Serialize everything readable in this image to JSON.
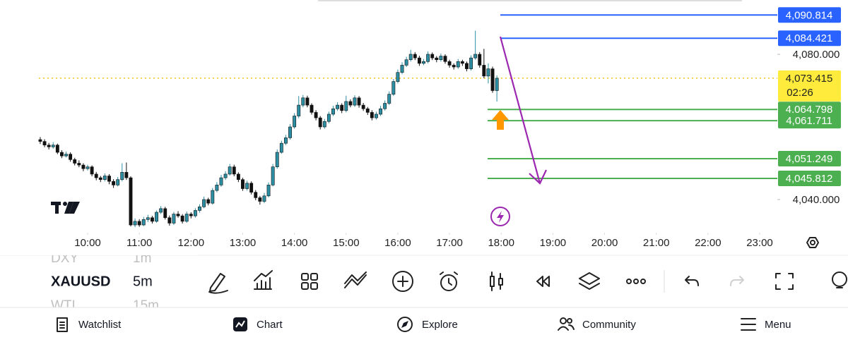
{
  "chart_data": {
    "type": "candlestick",
    "up_color": "#2b8ea3",
    "down_color": "#111111",
    "xlim": [
      543.4,
      1396.4
    ],
    "xticks": [
      {
        "value": 600,
        "label": "10:00"
      },
      {
        "value": 660,
        "label": "11:00"
      },
      {
        "value": 720,
        "label": "12:00"
      },
      {
        "value": 780,
        "label": "13:00"
      },
      {
        "value": 840,
        "label": "14:00"
      },
      {
        "value": 900,
        "label": "15:00"
      },
      {
        "value": 960,
        "label": "16:00"
      },
      {
        "value": 1020,
        "label": "17:00"
      },
      {
        "value": 1080,
        "label": "18:00"
      },
      {
        "value": 1140,
        "label": "19:00"
      },
      {
        "value": 1200,
        "label": "20:00"
      },
      {
        "value": 1260,
        "label": "21:00"
      },
      {
        "value": 1320,
        "label": "22:00"
      },
      {
        "value": 1380,
        "label": "23:00"
      }
    ],
    "ylim": [
      4030.87,
      4094.95
    ],
    "yticks": [
      {
        "value": 4080,
        "label": "4,080.000"
      },
      {
        "value": 4040,
        "label": "4,040.000"
      }
    ],
    "current_price": {
      "value": 4073.415,
      "label": "4,073.415",
      "countdown": "02:26",
      "color": "#ffeb3b"
    },
    "levels": [
      {
        "value": 4090.814,
        "label": "4,090.814",
        "color": "#2962ff"
      },
      {
        "value": 4084.421,
        "label": "4,084.421",
        "color": "#2962ff"
      },
      {
        "value": 4064.798,
        "label": "4,064.798",
        "color": "#4caf50"
      },
      {
        "value": 4061.711,
        "label": "4,061.711",
        "color": "#4caf50"
      },
      {
        "value": 4051.249,
        "label": "4,051.249",
        "color": "#4caf50"
      },
      {
        "value": 4045.812,
        "label": "4,045.812",
        "color": "#4caf50"
      }
    ],
    "candles": [
      [
        545,
        4056.5,
        4057.2,
        4055.3,
        4056
      ],
      [
        550,
        4056,
        4056.6,
        4054.4,
        4055
      ],
      [
        555,
        4055,
        4055.6,
        4053.8,
        4054.5
      ],
      [
        560,
        4054.5,
        4055.8,
        4054,
        4055
      ],
      [
        565,
        4055,
        4055.4,
        4052.5,
        4053
      ],
      [
        570,
        4053,
        4053.6,
        4051.4,
        4052
      ],
      [
        575,
        4052,
        4053.2,
        4051.6,
        4052.5
      ],
      [
        580,
        4052.5,
        4053,
        4050.4,
        4051
      ],
      [
        585,
        4051,
        4051.5,
        4049.4,
        4050
      ],
      [
        590,
        4050,
        4050.8,
        4048.9,
        4049.5
      ],
      [
        595,
        4049.5,
        4050,
        4047.8,
        4048.5
      ],
      [
        600,
        4048.5,
        4049.6,
        4048,
        4049
      ],
      [
        605,
        4049,
        4049.4,
        4046.4,
        4047
      ],
      [
        610,
        4047,
        4047.6,
        4045.3,
        4046
      ],
      [
        615,
        4046,
        4046.5,
        4044.8,
        4045.5
      ],
      [
        620,
        4045.5,
        4047.2,
        4045,
        4046.5
      ],
      [
        625,
        4046.5,
        4047,
        4044.2,
        4045
      ],
      [
        630,
        4045,
        4045.6,
        4043.2,
        4044
      ],
      [
        635,
        4044,
        4046.2,
        4043.6,
        4045.5
      ],
      [
        640,
        4045.5,
        4050,
        4045,
        4047.5
      ],
      [
        645,
        4047.5,
        4050.2,
        4045.4,
        4046
      ],
      [
        650,
        4046,
        4046.4,
        4032.6,
        4033
      ],
      [
        655,
        4033,
        4034.8,
        4032.4,
        4034
      ],
      [
        660,
        4034,
        4034.6,
        4032.5,
        4033
      ],
      [
        665,
        4033,
        4035.2,
        4032.7,
        4034.5
      ],
      [
        670,
        4034.5,
        4035.8,
        4033.8,
        4035
      ],
      [
        675,
        4035,
        4035.5,
        4033.4,
        4034
      ],
      [
        680,
        4034,
        4037,
        4033.6,
        4036.5
      ],
      [
        685,
        4036.5,
        4038.2,
        4036,
        4037.5
      ],
      [
        690,
        4037.5,
        4038,
        4034.5,
        4035
      ],
      [
        695,
        4035,
        4035.6,
        4032.8,
        4033.5
      ],
      [
        700,
        4033.5,
        4036.6,
        4033,
        4036
      ],
      [
        705,
        4036,
        4036.8,
        4035,
        4035.5
      ],
      [
        710,
        4035.5,
        4036,
        4033.4,
        4034
      ],
      [
        715,
        4034,
        4036.7,
        4033.6,
        4036
      ],
      [
        720,
        4036,
        4036.5,
        4034.8,
        4035.5
      ],
      [
        725,
        4035.5,
        4037.6,
        4035,
        4037
      ],
      [
        730,
        4037,
        4038.7,
        4036.4,
        4038
      ],
      [
        735,
        4038,
        4040.8,
        4037.6,
        4040
      ],
      [
        740,
        4040,
        4040.5,
        4038.4,
        4039
      ],
      [
        745,
        4039,
        4043.2,
        4038.6,
        4042.5
      ],
      [
        750,
        4042.5,
        4044.8,
        4042,
        4044
      ],
      [
        755,
        4044,
        4046.8,
        4043.5,
        4046
      ],
      [
        760,
        4046,
        4047.8,
        4045.4,
        4047
      ],
      [
        765,
        4047,
        4049.8,
        4046.6,
        4049
      ],
      [
        770,
        4049,
        4049.6,
        4046.4,
        4047
      ],
      [
        775,
        4047,
        4047.5,
        4044.8,
        4045.5
      ],
      [
        780,
        4045.5,
        4046,
        4042.4,
        4043
      ],
      [
        785,
        4043,
        4045.2,
        4042.5,
        4044.5
      ],
      [
        790,
        4044.5,
        4045,
        4041.4,
        4042
      ],
      [
        795,
        4042,
        4042.6,
        4039.8,
        4040.5
      ],
      [
        800,
        4040.5,
        4041,
        4038.6,
        4039.5
      ],
      [
        805,
        4039.5,
        4041.8,
        4039,
        4041
      ],
      [
        810,
        4041,
        4044.7,
        4040.6,
        4044
      ],
      [
        815,
        4044,
        4049.8,
        4043.6,
        4049
      ],
      [
        820,
        4049,
        4053.8,
        4048.5,
        4053
      ],
      [
        825,
        4053,
        4056.2,
        4052.6,
        4055.5
      ],
      [
        830,
        4055.5,
        4057.8,
        4055,
        4057
      ],
      [
        835,
        4057,
        4060.8,
        4056.5,
        4060
      ],
      [
        840,
        4060,
        4063.8,
        4059.5,
        4063
      ],
      [
        845,
        4063,
        4068.5,
        4062.4,
        4066
      ],
      [
        850,
        4066,
        4068.8,
        4065.4,
        4068
      ],
      [
        855,
        4068,
        4068.6,
        4065.4,
        4066
      ],
      [
        860,
        4066,
        4066.5,
        4063.4,
        4064
      ],
      [
        865,
        4064,
        4064.6,
        4061.8,
        4062.5
      ],
      [
        870,
        4062.5,
        4063,
        4059.3,
        4060
      ],
      [
        875,
        4060,
        4062.2,
        4059.5,
        4061.5
      ],
      [
        880,
        4061.5,
        4064.2,
        4061,
        4063.5
      ],
      [
        885,
        4063.5,
        4065.8,
        4063,
        4065
      ],
      [
        890,
        4065,
        4066.8,
        4064.4,
        4066
      ],
      [
        895,
        4066,
        4066.5,
        4063.8,
        4064.5
      ],
      [
        900,
        4064.5,
        4068.6,
        4064,
        4067
      ],
      [
        905,
        4067,
        4067.6,
        4065.4,
        4066
      ],
      [
        910,
        4066,
        4068.7,
        4065.5,
        4068
      ],
      [
        915,
        4068,
        4068.5,
        4065.3,
        4066
      ],
      [
        920,
        4066,
        4066.6,
        4064.4,
        4065
      ],
      [
        925,
        4065,
        4065.5,
        4063.3,
        4064
      ],
      [
        930,
        4064,
        4064.6,
        4061.8,
        4062.5
      ],
      [
        935,
        4062.5,
        4064.2,
        4062,
        4063.5
      ],
      [
        940,
        4063.5,
        4065.8,
        4063,
        4065
      ],
      [
        945,
        4065,
        4067.3,
        4064.5,
        4066.5
      ],
      [
        950,
        4066.5,
        4069.8,
        4066,
        4069
      ],
      [
        955,
        4069,
        4073.2,
        4068.5,
        4072.5
      ],
      [
        960,
        4072.5,
        4075.8,
        4072,
        4075
      ],
      [
        965,
        4075,
        4077.8,
        4074.5,
        4077
      ],
      [
        970,
        4077,
        4079.3,
        4076.5,
        4078.5
      ],
      [
        975,
        4078.5,
        4081.2,
        4078,
        4080
      ],
      [
        980,
        4080,
        4080.6,
        4078.4,
        4079
      ],
      [
        985,
        4079,
        4079.6,
        4076.8,
        4077.5
      ],
      [
        990,
        4077.5,
        4078.7,
        4077,
        4078
      ],
      [
        995,
        4078,
        4080.8,
        4077.5,
        4080
      ],
      [
        1000,
        4080,
        4080.5,
        4078.4,
        4079
      ],
      [
        1005,
        4079,
        4079.5,
        4077.8,
        4078.5
      ],
      [
        1010,
        4078.5,
        4080.2,
        4078,
        4079.5
      ],
      [
        1015,
        4079.5,
        4080,
        4077.4,
        4078
      ],
      [
        1020,
        4078,
        4078.5,
        4076.3,
        4077
      ],
      [
        1025,
        4077,
        4077.5,
        4075.8,
        4076.5
      ],
      [
        1030,
        4076.5,
        4078.7,
        4076,
        4078
      ],
      [
        1035,
        4078,
        4078.5,
        4076.8,
        4077.5
      ],
      [
        1040,
        4077.5,
        4078,
        4075.3,
        4076
      ],
      [
        1045,
        4076,
        4079.7,
        4075.5,
        4079
      ],
      [
        1050,
        4079,
        4086.5,
        4078.5,
        4080
      ],
      [
        1055,
        4080,
        4080.6,
        4076.3,
        4077
      ],
      [
        1060,
        4077,
        4081.5,
        4073.4,
        4074
      ],
      [
        1065,
        4074,
        4077.5,
        4072,
        4076
      ],
      [
        1070,
        4076,
        4076.6,
        4069.4,
        4070
      ],
      [
        1075,
        4070,
        4074.2,
        4067,
        4073.415
      ]
    ]
  },
  "symbol_switcher": {
    "previous": {
      "symbol": "DXY",
      "interval": "1m"
    },
    "current": {
      "symbol": "XAUUSD",
      "interval": "5m"
    },
    "next": {
      "symbol": "WTI",
      "interval": "15m"
    }
  },
  "nav": [
    "Watchlist",
    "Chart",
    "Explore",
    "Community",
    "Menu"
  ]
}
